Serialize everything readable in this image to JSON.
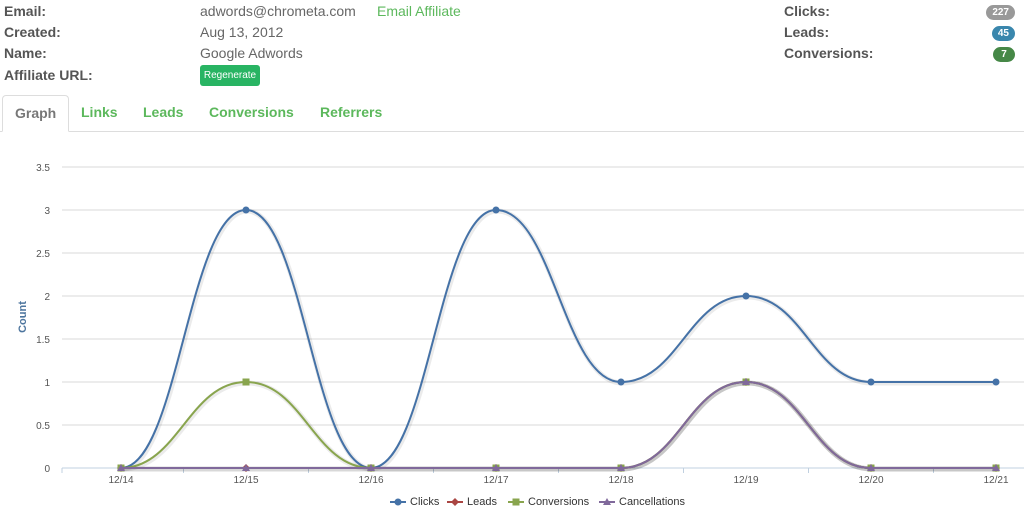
{
  "info": {
    "email_label": "Email:",
    "email_value": "adwords@chrometa.com",
    "email_affiliate": "Email Affiliate",
    "created_label": "Created:",
    "created_value": "Aug 13, 2012",
    "name_label": "Name:",
    "name_value": "Google Adwords",
    "url_label": "Affiliate URL:",
    "regenerate_label": "Regenerate"
  },
  "stats": {
    "clicks_label": "Clicks:",
    "clicks_value": "227",
    "leads_label": "Leads:",
    "leads_value": "45",
    "conversions_label": "Conversions:",
    "conversions_value": "7",
    "colors": {
      "clicks": "#999999",
      "leads": "#3a87ad",
      "conversions": "#468847"
    }
  },
  "tabs": [
    {
      "label": "Graph",
      "active": true
    },
    {
      "label": "Links"
    },
    {
      "label": "Leads"
    },
    {
      "label": "Conversions"
    },
    {
      "label": "Referrers"
    }
  ],
  "chart_data": {
    "type": "line",
    "categories": [
      "12/14",
      "12/15",
      "12/16",
      "12/17",
      "12/18",
      "12/19",
      "12/20",
      "12/21"
    ],
    "ylabel": "Count",
    "ylim": [
      0,
      3.5
    ],
    "yticks": [
      "0",
      "0.5",
      "1",
      "1.5",
      "2",
      "2.5",
      "3",
      "3.5"
    ],
    "grid": true,
    "legend": "bottom-center",
    "series": [
      {
        "name": "Clicks",
        "color": "#4572a7",
        "marker": "circle",
        "values": [
          0,
          3,
          0,
          3,
          1,
          2,
          1,
          1
        ]
      },
      {
        "name": "Leads",
        "color": "#aa4643",
        "marker": "diamond",
        "values": [
          0,
          0,
          0,
          0,
          0,
          1,
          0,
          0
        ]
      },
      {
        "name": "Conversions",
        "color": "#89a54e",
        "marker": "square",
        "values": [
          0,
          1,
          0,
          0,
          0,
          1,
          0,
          0
        ]
      },
      {
        "name": "Cancellations",
        "color": "#80699b",
        "marker": "triangle",
        "values": [
          0,
          0,
          0,
          0,
          0,
          1,
          0,
          0
        ]
      }
    ]
  }
}
